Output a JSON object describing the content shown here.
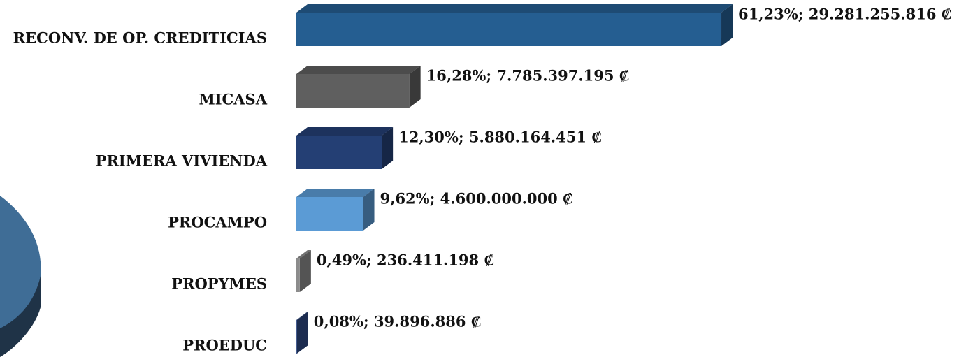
{
  "chart_data": {
    "type": "bar3d_horizontal",
    "categories": [
      "RECONV. DE OP. CREDITICIAS",
      "MICASA",
      "PRIMERA VIVIENDA",
      "PROCAMPO",
      "PROPYMES",
      "PROEDUC"
    ],
    "values": [
      61.23,
      16.28,
      12.3,
      9.62,
      0.49,
      0.08
    ],
    "value_labels": [
      "61,23%; 29.281.255.816 ₡",
      "16,28%; 7.785.397.195 ₡",
      "12,30%; 5.880.164.451 ₡",
      "9,62%; 4.600.000.000 ₡",
      "0,49%; 236.411.198 ₡",
      "0,08%; 39.896.886 ₡"
    ],
    "colors": [
      "#255e91",
      "#5f5f5f",
      "#243f74",
      "#5b9bd5",
      "#8c8c8c",
      "#2e4a86"
    ]
  }
}
